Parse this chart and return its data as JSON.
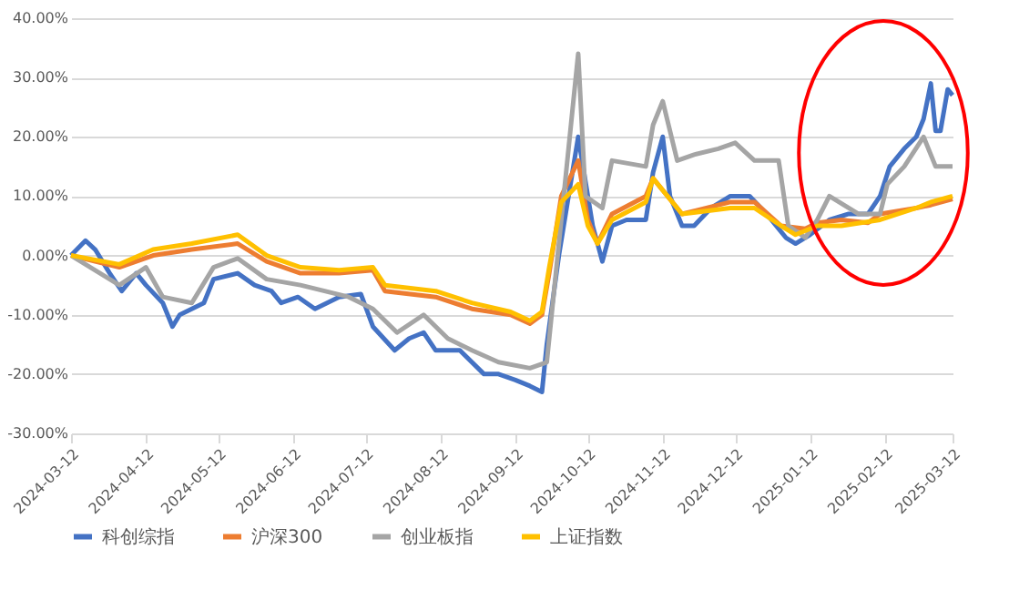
{
  "chart_data": {
    "type": "line",
    "legend": "bottom",
    "grid": "y",
    "line_style": "solid",
    "marker": "none",
    "ylim": [
      -30,
      40
    ],
    "yticks": [
      {
        "value": -30,
        "label": "-30.00%"
      },
      {
        "value": -20,
        "label": "-20.00%"
      },
      {
        "value": -10,
        "label": "-10.00%"
      },
      {
        "value": 0,
        "label": "0.00%"
      },
      {
        "value": 10,
        "label": "10.00%"
      },
      {
        "value": 20,
        "label": "20.00%"
      },
      {
        "value": 30,
        "label": "30.00%"
      },
      {
        "value": 40,
        "label": "40.00%"
      }
    ],
    "xlim": [
      "2024-03-12",
      "2025-03-12"
    ],
    "xticks": [
      "2024-03-12",
      "2024-04-12",
      "2024-05-12",
      "2024-06-12",
      "2024-07-12",
      "2024-08-12",
      "2024-09-12",
      "2024-10-12",
      "2024-11-12",
      "2024-12-12",
      "2025-01-12",
      "2025-02-12",
      "2025-03-12"
    ],
    "series": [
      {
        "name": "科创综指",
        "color": "#4472c4",
        "x": [
          "2024-03-12",
          "2024-03-18",
          "2024-03-22",
          "2024-03-28",
          "2024-04-02",
          "2024-04-08",
          "2024-04-12",
          "2024-04-19",
          "2024-04-23",
          "2024-04-26",
          "2024-05-06",
          "2024-05-10",
          "2024-05-20",
          "2024-05-27",
          "2024-06-03",
          "2024-06-07",
          "2024-06-14",
          "2024-06-21",
          "2024-07-01",
          "2024-07-10",
          "2024-07-15",
          "2024-07-24",
          "2024-07-30",
          "2024-08-05",
          "2024-08-10",
          "2024-08-20",
          "2024-08-30",
          "2024-09-05",
          "2024-09-12",
          "2024-09-18",
          "2024-09-23",
          "2024-09-25",
          "2024-09-30",
          "2024-10-08",
          "2024-10-10",
          "2024-10-14",
          "2024-10-18",
          "2024-10-22",
          "2024-10-28",
          "2024-11-05",
          "2024-11-08",
          "2024-11-12",
          "2024-11-15",
          "2024-11-20",
          "2024-11-25",
          "2024-12-02",
          "2024-12-10",
          "2024-12-18",
          "2024-12-25",
          "2025-01-02",
          "2025-01-06",
          "2025-01-12",
          "2025-01-20",
          "2025-01-28",
          "2025-02-05",
          "2025-02-10",
          "2025-02-14",
          "2025-02-20",
          "2025-02-25",
          "2025-02-28",
          "2025-03-03",
          "2025-03-05",
          "2025-03-07",
          "2025-03-10",
          "2025-03-12"
        ],
        "values": [
          0,
          2.5,
          1,
          -3,
          -6,
          -3,
          -5,
          -8,
          -12,
          -10,
          -8,
          -4,
          -3,
          -5,
          -6,
          -8,
          -7,
          -9,
          -7,
          -6.5,
          -12,
          -16,
          -14,
          -13,
          -16,
          -16,
          -20,
          -20,
          -21,
          -22,
          -23,
          -15,
          0,
          20,
          15,
          5,
          -1,
          5,
          6,
          6,
          14,
          20,
          10,
          5,
          5,
          8,
          10,
          10,
          7,
          3,
          2,
          3.5,
          6,
          7,
          7,
          10,
          15,
          18,
          20,
          23,
          29,
          21,
          21,
          28,
          27
        ]
      },
      {
        "name": "沪深300",
        "color": "#ed7d31",
        "x": [
          "2024-03-12",
          "2024-04-01",
          "2024-04-15",
          "2024-05-01",
          "2024-05-20",
          "2024-06-01",
          "2024-06-15",
          "2024-07-01",
          "2024-07-15",
          "2024-07-20",
          "2024-08-10",
          "2024-08-25",
          "2024-09-10",
          "2024-09-18",
          "2024-09-23",
          "2024-09-26",
          "2024-10-01",
          "2024-10-08",
          "2024-10-12",
          "2024-10-16",
          "2024-10-22",
          "2024-11-05",
          "2024-11-08",
          "2024-11-20",
          "2024-12-10",
          "2024-12-20",
          "2024-12-31",
          "2025-01-10",
          "2025-01-15",
          "2025-01-25",
          "2025-02-05",
          "2025-02-10",
          "2025-02-25",
          "2025-03-03",
          "2025-03-12"
        ],
        "values": [
          0,
          -2,
          0,
          1,
          2,
          -1,
          -3,
          -3,
          -2.5,
          -6,
          -7,
          -9,
          -10,
          -11.5,
          -10,
          -3,
          10,
          16,
          6,
          2,
          7,
          10,
          13,
          7,
          9,
          9,
          5,
          4.5,
          5.5,
          6,
          5.5,
          7,
          8,
          8.5,
          9.5
        ]
      },
      {
        "name": "创业板指",
        "color": "#a5a5a5",
        "x": [
          "2024-03-12",
          "2024-04-01",
          "2024-04-12",
          "2024-04-19",
          "2024-05-01",
          "2024-05-10",
          "2024-05-20",
          "2024-06-01",
          "2024-06-15",
          "2024-07-05",
          "2024-07-15",
          "2024-07-25",
          "2024-08-05",
          "2024-08-15",
          "2024-08-25",
          "2024-09-05",
          "2024-09-18",
          "2024-09-25",
          "2024-10-08",
          "2024-10-11",
          "2024-10-18",
          "2024-10-22",
          "2024-11-05",
          "2024-11-08",
          "2024-11-12",
          "2024-11-18",
          "2024-11-25",
          "2024-12-05",
          "2024-12-12",
          "2024-12-20",
          "2024-12-30",
          "2025-01-03",
          "2025-01-10",
          "2025-01-15",
          "2025-01-20",
          "2025-02-01",
          "2025-02-10",
          "2025-02-13",
          "2025-02-20",
          "2025-02-28",
          "2025-03-05",
          "2025-03-12"
        ],
        "values": [
          0,
          -5,
          -2,
          -7,
          -8,
          -2,
          -0.5,
          -4,
          -5,
          -7,
          -9,
          -13,
          -10,
          -14,
          -16,
          -18,
          -19,
          -18,
          34,
          10,
          8,
          16,
          15,
          22,
          26,
          16,
          17,
          18,
          19,
          16,
          16,
          5,
          3,
          6,
          10,
          7,
          7,
          12,
          15,
          20,
          15,
          15
        ]
      },
      {
        "name": "上证指数",
        "color": "#ffc000",
        "x": [
          "2024-03-12",
          "2024-04-01",
          "2024-04-15",
          "2024-05-01",
          "2024-05-20",
          "2024-06-01",
          "2024-06-15",
          "2024-07-01",
          "2024-07-15",
          "2024-07-20",
          "2024-08-10",
          "2024-08-25",
          "2024-09-10",
          "2024-09-18",
          "2024-09-23",
          "2024-09-26",
          "2024-10-01",
          "2024-10-08",
          "2024-10-12",
          "2024-10-16",
          "2024-10-22",
          "2024-11-05",
          "2024-11-08",
          "2024-11-20",
          "2024-12-10",
          "2024-12-20",
          "2024-12-31",
          "2025-01-06",
          "2025-01-15",
          "2025-01-25",
          "2025-02-10",
          "2025-02-25",
          "2025-03-03",
          "2025-03-12"
        ],
        "values": [
          0,
          -1.5,
          1,
          2,
          3.5,
          0,
          -2,
          -2.5,
          -2,
          -5,
          -6,
          -8,
          -9.5,
          -11,
          -9.5,
          -2,
          9,
          12,
          5,
          2,
          6,
          9,
          13,
          7,
          8,
          8,
          5,
          3.5,
          5,
          5,
          6,
          8,
          9,
          10
        ]
      }
    ]
  }
}
